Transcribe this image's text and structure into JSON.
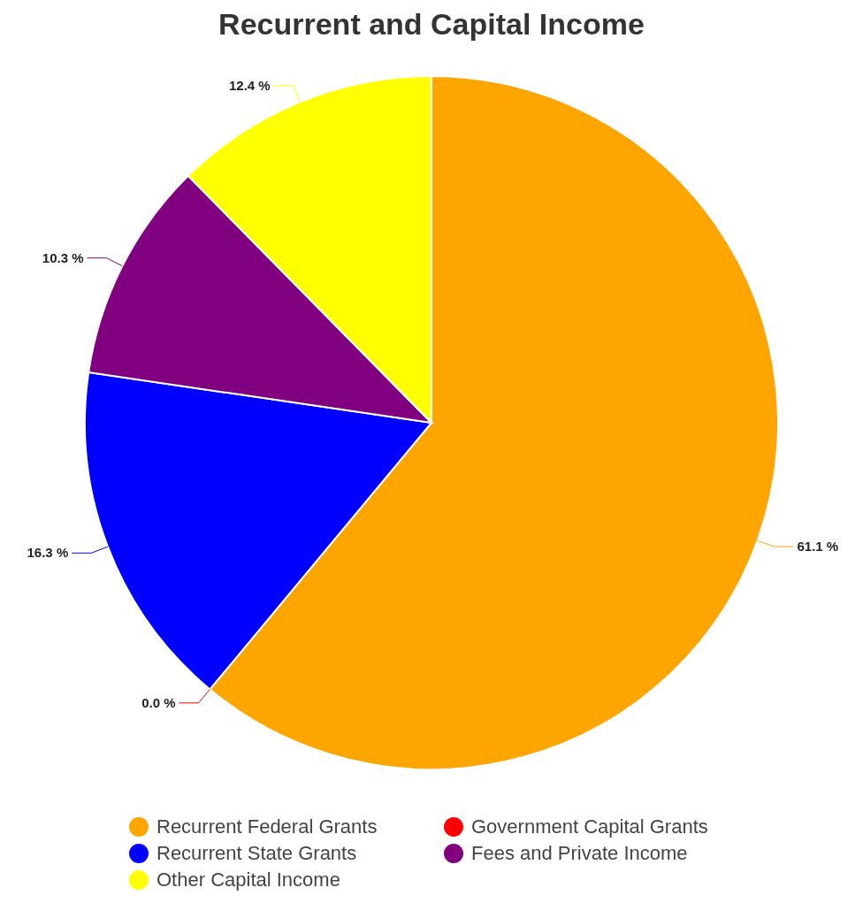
{
  "chart_data": {
    "type": "pie",
    "title": "Recurrent and Capital Income",
    "categories": [
      "Recurrent Federal Grants",
      "Government Capital Grants",
      "Recurrent State Grants",
      "Fees and Private Income",
      "Other Capital Income"
    ],
    "values": [
      61.1,
      0.0,
      16.3,
      10.3,
      12.4
    ],
    "value_labels": [
      "61.1 %",
      "0.0 %",
      "16.3 %",
      "10.3 %",
      "12.4 %"
    ],
    "colors": [
      "#ffa500",
      "#ff0000",
      "#0000ff",
      "#800080",
      "#ffff00"
    ],
    "legend": "bottom"
  }
}
